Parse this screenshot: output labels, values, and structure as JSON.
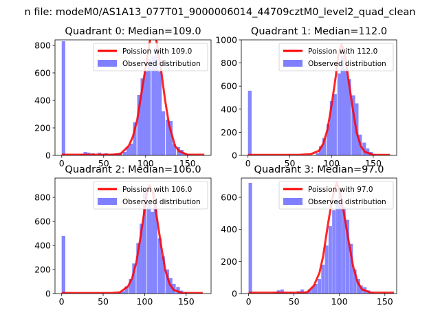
{
  "suptitle": "n file: modeM0/AS1A13_077T01_9000006014_44709cztM0_level2_quad_clean",
  "chart_data": [
    {
      "type": "bar",
      "title": "Quadrant 0: Median=109.0",
      "xlim": [
        -8,
        178
      ],
      "ylim": [
        0,
        840
      ],
      "xticks": [
        0,
        50,
        100,
        150
      ],
      "yticks": [
        0,
        200,
        400,
        600,
        800
      ],
      "legend_position": "top-right",
      "series": [
        {
          "name": "Poission with 109.0",
          "kind": "line",
          "color": "#ff0000",
          "x": [
            0,
            20,
            40,
            60,
            70,
            80,
            85,
            90,
            95,
            100,
            105,
            109,
            113,
            118,
            123,
            128,
            135,
            140,
            150,
            170
          ],
          "y": [
            5,
            5,
            5,
            5,
            10,
            70,
            140,
            260,
            450,
            640,
            830,
            910,
            830,
            640,
            410,
            220,
            70,
            30,
            5,
            5
          ]
        },
        {
          "name": "Observed distribution",
          "kind": "histogram",
          "color": "#7f7fff",
          "bin_width": 4.2,
          "x": [
            0,
            22,
            26,
            30,
            35,
            43,
            47,
            51,
            56,
            60,
            64,
            68,
            73,
            77,
            81,
            85,
            90,
            94,
            98,
            102,
            107,
            111,
            115,
            119,
            124,
            128,
            132,
            137,
            141,
            145,
            149,
            154,
            158
          ],
          "y": [
            830,
            10,
            25,
            20,
            15,
            20,
            10,
            15,
            10,
            10,
            15,
            20,
            25,
            60,
            85,
            240,
            440,
            560,
            610,
            700,
            720,
            780,
            610,
            320,
            260,
            250,
            80,
            60,
            40,
            15,
            10,
            5,
            5
          ]
        }
      ]
    },
    {
      "type": "bar",
      "title": "Quadrant 1: Median=112.0",
      "xlim": [
        -8,
        178
      ],
      "ylim": [
        0,
        1000
      ],
      "xticks": [
        0,
        50,
        100,
        150
      ],
      "yticks": [
        0,
        200,
        400,
        600,
        800,
        1000
      ],
      "legend_position": "top-right",
      "series": [
        {
          "name": "Poission with 112.0",
          "kind": "line",
          "color": "#ff0000",
          "x": [
            0,
            20,
            40,
            60,
            75,
            85,
            90,
            95,
            100,
            105,
            108,
            112,
            116,
            120,
            125,
            130,
            135,
            140,
            150,
            170
          ],
          "y": [
            5,
            5,
            5,
            5,
            10,
            40,
            100,
            220,
            430,
            680,
            860,
            960,
            880,
            670,
            420,
            200,
            80,
            30,
            5,
            5
          ]
        },
        {
          "name": "Observed distribution",
          "kind": "histogram",
          "color": "#7f7fff",
          "bin_width": 4.3,
          "x": [
            0,
            81,
            85,
            89,
            94,
            98,
            102,
            107,
            111,
            115,
            119,
            124,
            128,
            132,
            137,
            141,
            145,
            149
          ],
          "y": [
            560,
            20,
            80,
            150,
            270,
            470,
            530,
            710,
            860,
            750,
            660,
            520,
            450,
            180,
            110,
            60,
            30,
            10
          ]
        }
      ]
    },
    {
      "type": "bar",
      "title": "Quadrant 2: Median=106.0",
      "xlim": [
        -8,
        180
      ],
      "ylim": [
        0,
        960
      ],
      "xticks": [
        0,
        50,
        100,
        150
      ],
      "yticks": [
        0,
        200,
        400,
        600,
        800
      ],
      "legend_position": "top-right",
      "series": [
        {
          "name": "Poission with 106.0",
          "kind": "line",
          "color": "#ff0000",
          "x": [
            0,
            20,
            40,
            60,
            70,
            80,
            85,
            90,
            95,
            100,
            103,
            106,
            110,
            115,
            120,
            125,
            130,
            135,
            145,
            170
          ],
          "y": [
            5,
            5,
            5,
            5,
            10,
            60,
            130,
            260,
            470,
            700,
            850,
            900,
            840,
            620,
            390,
            190,
            80,
            30,
            5,
            5
          ]
        },
        {
          "name": "Observed distribution",
          "kind": "histogram",
          "color": "#7f7fff",
          "bin_width": 4.4,
          "x": [
            0,
            68,
            72,
            76,
            81,
            85,
            90,
            94,
            98,
            103,
            107,
            111,
            116,
            120,
            125,
            129,
            133,
            138,
            142,
            147
          ],
          "y": [
            480,
            10,
            20,
            60,
            120,
            250,
            420,
            580,
            880,
            750,
            680,
            740,
            460,
            310,
            200,
            130,
            80,
            55,
            25,
            10
          ]
        }
      ]
    },
    {
      "type": "bar",
      "title": "Quadrant 3: Median=97.0",
      "xlim": [
        -8,
        163
      ],
      "ylim": [
        0,
        720
      ],
      "xticks": [
        0,
        50,
        100,
        150
      ],
      "yticks": [
        0,
        200,
        400,
        600
      ],
      "legend_position": "top-right",
      "series": [
        {
          "name": "Poission with 97.0",
          "kind": "line",
          "color": "#ff0000",
          "x": [
            0,
            20,
            40,
            60,
            65,
            72,
            78,
            82,
            87,
            92,
            95,
            97,
            100,
            105,
            110,
            115,
            120,
            125,
            135,
            160
          ],
          "y": [
            5,
            5,
            5,
            5,
            10,
            50,
            130,
            230,
            420,
            590,
            660,
            690,
            640,
            500,
            330,
            170,
            70,
            25,
            5,
            5
          ]
        },
        {
          "name": "Observed distribution",
          "kind": "histogram",
          "color": "#7f7fff",
          "bin_width": 3.8,
          "x": [
            0,
            27,
            31,
            35,
            39,
            45,
            53,
            57,
            61,
            65,
            69,
            72,
            76,
            80,
            84,
            88,
            92,
            96,
            99,
            103,
            107,
            111,
            115,
            119,
            122,
            126,
            130,
            134
          ],
          "y": [
            690,
            10,
            20,
            25,
            10,
            10,
            15,
            25,
            10,
            25,
            40,
            60,
            90,
            180,
            300,
            420,
            520,
            580,
            650,
            540,
            460,
            310,
            150,
            90,
            50,
            40,
            20,
            10
          ]
        }
      ]
    }
  ]
}
